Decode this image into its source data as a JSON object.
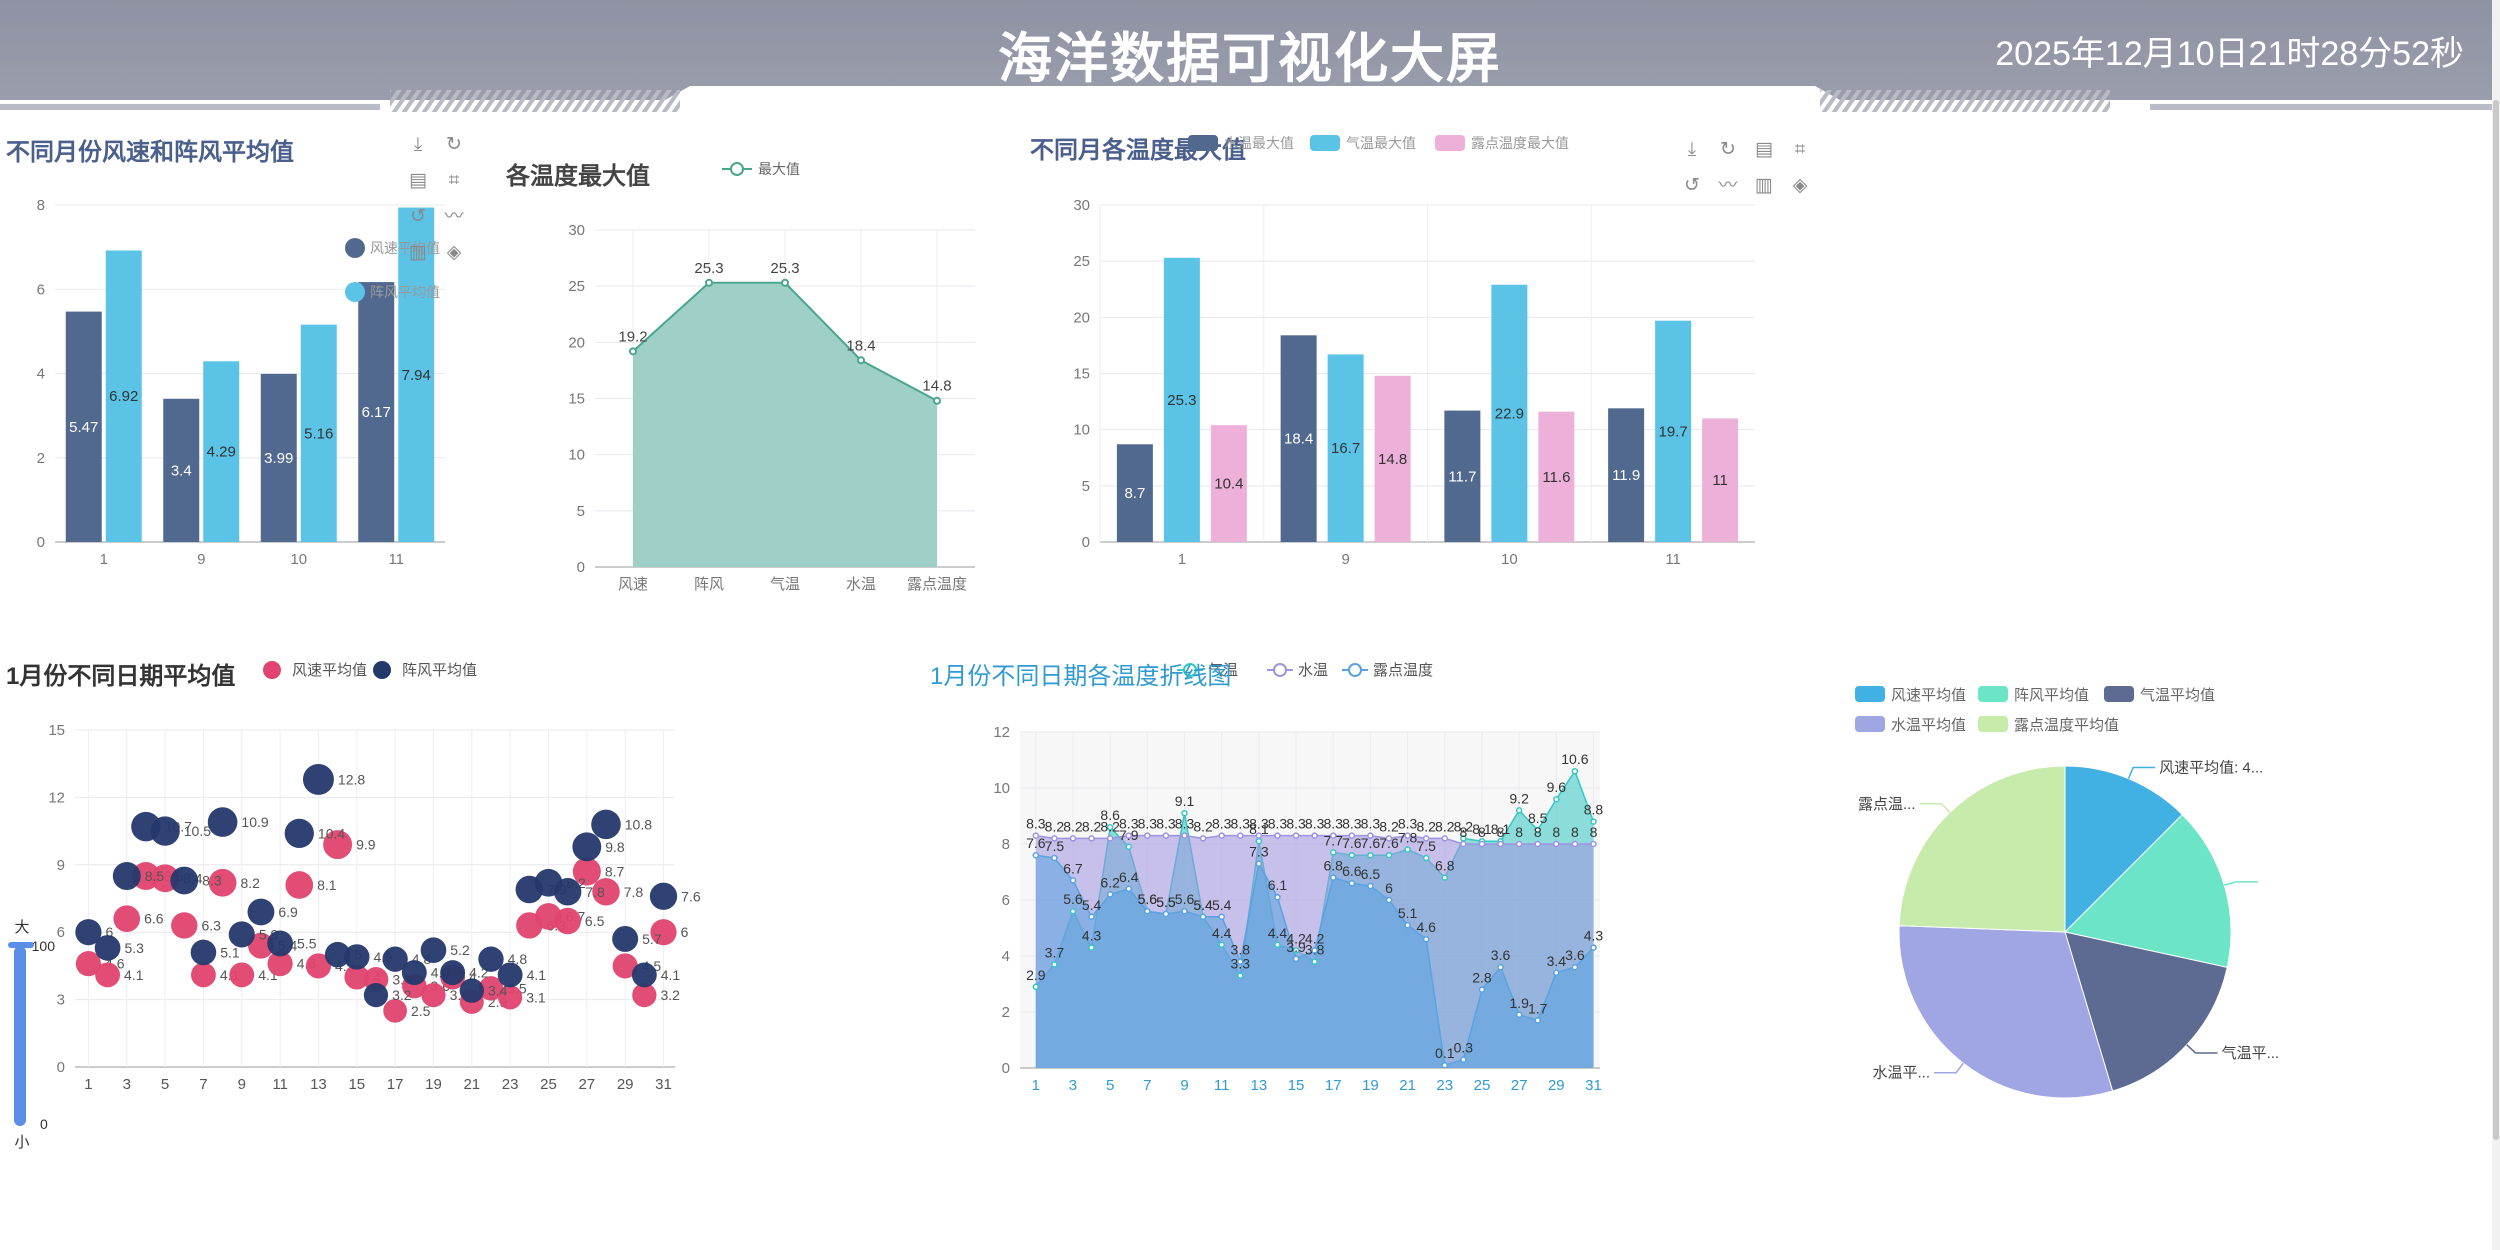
{
  "header": {
    "title": "海洋数据可视化大屏",
    "datetime": "2025年12月10日21时28分52秒"
  },
  "colors": {
    "header_bg": "#9396a5",
    "dark_blue": "#52698f",
    "cyan": "#5ac3e6",
    "pink": "#ecb0d9",
    "green_area": "#9fd0c7",
    "red": "#e0436f",
    "navy": "#24386b"
  },
  "chart1": {
    "title": "不同月份风速和阵风平均值"
  },
  "chart2": {
    "title": "各温度最大值"
  },
  "chart3": {
    "title": "不同月各温度最大值"
  },
  "chart4": {
    "title": "1月份不同日期平均值"
  },
  "chart5": {
    "title": "1月份不同日期各温度折线图"
  },
  "chart6": {
    "title": ""
  },
  "visual_map": {
    "max_label": "大",
    "min_label": "小",
    "max_value": "100",
    "min_value": "0"
  },
  "toolbox_icons": [
    "download-icon",
    "refresh-icon",
    "data-view-icon",
    "crop-icon",
    "restore-icon",
    "line-icon",
    "bar-icon",
    "stack-icon"
  ],
  "chart_data": [
    {
      "type": "bar",
      "title": "不同月份风速和阵风平均值",
      "categories": [
        "1",
        "9",
        "10",
        "11"
      ],
      "series": [
        {
          "name": "风速平均值",
          "values": [
            5.47,
            3.4,
            3.99,
            6.17
          ],
          "color": "#52698f"
        },
        {
          "name": "阵风平均值",
          "values": [
            6.92,
            4.29,
            5.16,
            7.94
          ],
          "color": "#5ac3e6"
        }
      ],
      "ylim": [
        0,
        8
      ],
      "yticks": [
        0,
        2,
        4,
        6,
        8
      ],
      "legend": "right"
    },
    {
      "type": "area",
      "title": "各温度最大值",
      "categories": [
        "风速",
        "阵风",
        "气温",
        "水温",
        "露点温度"
      ],
      "series": [
        {
          "name": "最大值",
          "values": [
            19.2,
            25.3,
            25.3,
            18.4,
            14.8
          ],
          "color": "#4aa58f"
        }
      ],
      "ylim": [
        0,
        30
      ],
      "yticks": [
        0,
        5,
        10,
        15,
        20,
        25,
        30
      ],
      "legend": "top"
    },
    {
      "type": "bar",
      "title": "不同月各温度最大值",
      "categories": [
        "1",
        "9",
        "10",
        "11"
      ],
      "series": [
        {
          "name": "水温最大值",
          "values": [
            8.7,
            18.4,
            11.7,
            11.9
          ],
          "color": "#52698f"
        },
        {
          "name": "气温最大值",
          "values": [
            25.3,
            16.7,
            22.9,
            19.7
          ],
          "color": "#5ac3e6"
        },
        {
          "name": "露点温度最大值",
          "values": [
            10.4,
            14.8,
            11.6,
            11
          ],
          "color": "#ecb0d9"
        }
      ],
      "ylim": [
        0,
        30
      ],
      "yticks": [
        0,
        5,
        10,
        15,
        20,
        25,
        30
      ],
      "legend": "top"
    },
    {
      "type": "scatter",
      "title": "1月份不同日期平均值",
      "x": [
        1,
        2,
        3,
        4,
        5,
        6,
        7,
        8,
        9,
        10,
        11,
        12,
        13,
        14,
        15,
        16,
        17,
        18,
        19,
        20,
        21,
        22,
        23,
        24,
        25,
        26,
        27,
        28,
        29,
        30,
        31
      ],
      "xticks": [
        1,
        3,
        5,
        7,
        9,
        11,
        13,
        15,
        17,
        19,
        21,
        23,
        25,
        27,
        29,
        31
      ],
      "series": [
        {
          "name": "风速平均值",
          "color": "#e0436f",
          "values": [
            4.6,
            4.1,
            6.6,
            8.5,
            8.4,
            6.3,
            4.1,
            8.2,
            4.1,
            5.4,
            4.6,
            8.1,
            4.5,
            9.9,
            4.0,
            3.9,
            2.5,
            3.6,
            3.2,
            4.0,
            2.9,
            3.5,
            3.1,
            6.3,
            6.7,
            6.5,
            8.7,
            7.8,
            4.5,
            3.2,
            6.0
          ]
        },
        {
          "name": "阵风平均值",
          "color": "#24386b",
          "values": [
            6.0,
            5.3,
            8.5,
            10.7,
            10.5,
            8.3,
            5.1,
            10.9,
            5.9,
            6.9,
            5.5,
            10.4,
            12.8,
            5.0,
            4.9,
            3.2,
            4.8,
            4.2,
            5.2,
            4.2,
            3.4,
            4.8,
            4.1,
            7.9,
            8.2,
            7.8,
            9.8,
            10.8,
            5.7,
            4.1,
            7.6
          ]
        }
      ],
      "ylim": [
        0,
        15
      ],
      "yticks": [
        0,
        3,
        6,
        9,
        12,
        15
      ],
      "legend": "top"
    },
    {
      "type": "area",
      "title": "1月份不同日期各温度折线图",
      "x": [
        1,
        2,
        3,
        4,
        5,
        6,
        7,
        8,
        9,
        10,
        11,
        12,
        13,
        14,
        15,
        16,
        17,
        18,
        19,
        20,
        21,
        22,
        23,
        24,
        25,
        26,
        27,
        28,
        29,
        30,
        31
      ],
      "xticks": [
        1,
        3,
        5,
        7,
        9,
        11,
        13,
        15,
        17,
        19,
        21,
        23,
        25,
        27,
        29,
        31
      ],
      "series": [
        {
          "name": "气温",
          "color": "#35c7c2",
          "values": [
            2.9,
            3.7,
            5.6,
            4.3,
            8.6,
            7.9,
            5.6,
            5.5,
            9.1,
            5.4,
            4.4,
            3.3,
            8.1,
            4.4,
            4.2,
            3.8,
            7.7,
            7.6,
            7.6,
            7.6,
            7.8,
            7.5,
            6.8,
            8.2,
            8.1,
            8.1,
            9.2,
            8.5,
            9.6,
            10.6,
            8.8
          ]
        },
        {
          "name": "水温",
          "color": "#9e93e0",
          "values": [
            8.3,
            8.2,
            8.2,
            8.2,
            8.2,
            8.3,
            8.3,
            8.3,
            8.3,
            8.2,
            8.3,
            8.3,
            8.3,
            8.3,
            8.3,
            8.3,
            8.3,
            8.3,
            8.3,
            8.2,
            8.3,
            8.2,
            8.2,
            8.0,
            8.0,
            8.0,
            8.0,
            8.0,
            8.0,
            8.0,
            8.0
          ]
        },
        {
          "name": "露点温度",
          "color": "#5aa3e0",
          "values": [
            7.6,
            7.5,
            6.7,
            5.4,
            6.2,
            6.4,
            5.6,
            5.5,
            5.6,
            5.4,
            5.4,
            3.8,
            7.3,
            6.1,
            3.9,
            4.2,
            6.8,
            6.6,
            6.5,
            6.0,
            5.1,
            4.6,
            0.1,
            0.3,
            2.8,
            3.6,
            1.9,
            1.7,
            3.4,
            3.6,
            4.3
          ]
        }
      ],
      "ylim": [
        0,
        12
      ],
      "yticks": [
        0,
        2,
        4,
        6,
        8,
        10,
        12
      ],
      "legend": "top"
    },
    {
      "type": "pie",
      "title": "",
      "labels": [
        "风速平均值",
        "阵风平均值",
        "气温平均值",
        "水温平均值",
        "露点温度平均值"
      ],
      "values": [
        4.82,
        6.14,
        6.54,
        11.66,
        9.41
      ],
      "colors": [
        "#41b0e3",
        "#6be5c5",
        "#5d6a91",
        "#a0a6e3",
        "#c7ebaa"
      ],
      "slice_labels": [
        "风速平均值: 4...",
        "",
        "气温平...",
        "水温平...",
        "露点温..."
      ],
      "legend": "top"
    }
  ]
}
